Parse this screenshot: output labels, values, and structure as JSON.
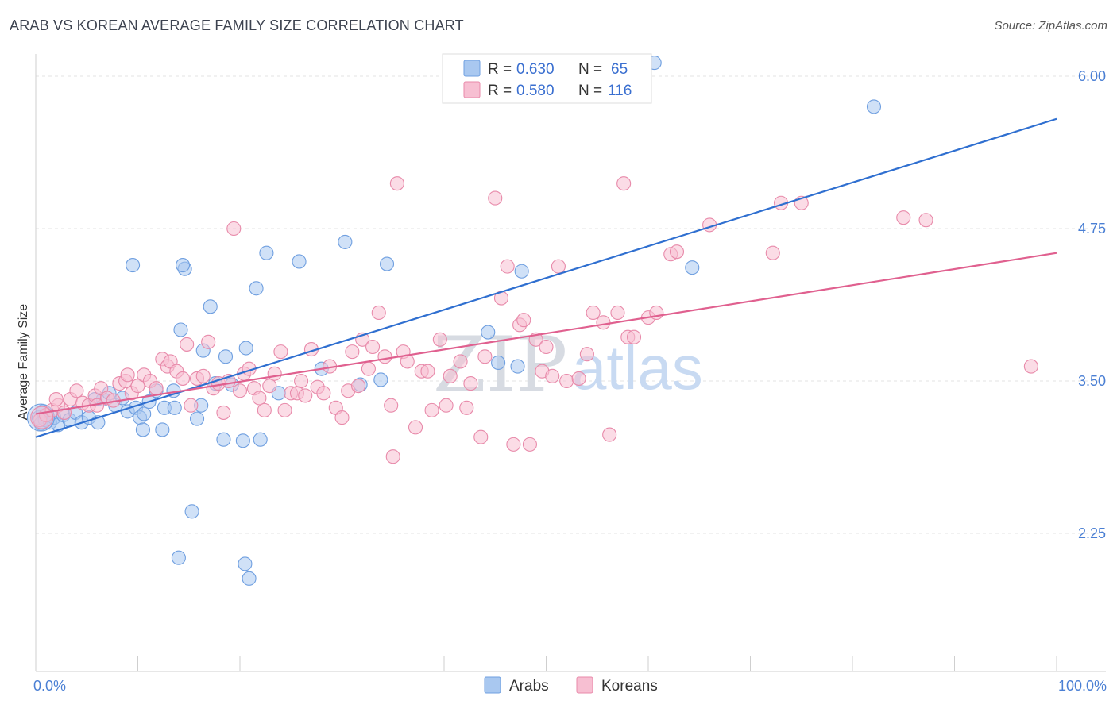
{
  "header": {
    "title": "ARAB VS KOREAN AVERAGE FAMILY SIZE CORRELATION CHART",
    "source": "Source: ZipAtlas.com"
  },
  "watermark": {
    "zip": "ZIP",
    "atlas": "atlas"
  },
  "legend": {
    "rows": [
      {
        "r_label": "R = ",
        "r_value": "0.630",
        "n_label": "N = ",
        "n_value": "65",
        "color": "#a9c8f0",
        "stroke": "#6f9fe0"
      },
      {
        "r_label": "R = ",
        "r_value": "0.580",
        "n_label": "N = ",
        "n_value": "116",
        "color": "#f7bfd2",
        "stroke": "#e88aaa"
      }
    ]
  },
  "bottom_legend": {
    "items": [
      "Arabs",
      "Koreans"
    ]
  },
  "chart_data": {
    "type": "scatter",
    "title": "ARAB VS KOREAN AVERAGE FAMILY SIZE CORRELATION CHART",
    "xlabel": "",
    "ylabel": "Average Family Size",
    "xlim": [
      0,
      100
    ],
    "ylim": [
      1.3,
      6.25
    ],
    "x_tick_labels": [
      "0.0%",
      "100.0%"
    ],
    "y_ticks": [
      2.25,
      3.5,
      4.75,
      6.0
    ],
    "y_tick_labels": [
      "2.25",
      "3.50",
      "4.75",
      "6.00"
    ],
    "grid": true,
    "legend_position": "top-center",
    "series": [
      {
        "name": "Arabs",
        "color": "#6f9fe0",
        "fill": "#a9c8f0",
        "trend": {
          "x": [
            0,
            100
          ],
          "y": [
            3.04,
            5.65
          ],
          "color": "#2f6fd0"
        },
        "points": [
          [
            0.3,
            3.2
          ],
          [
            0.5,
            3.15
          ],
          [
            0.7,
            3.25
          ],
          [
            0.9,
            3.18
          ],
          [
            1.1,
            3.22
          ],
          [
            1.4,
            3.16
          ],
          [
            1.8,
            3.2
          ],
          [
            2.2,
            3.14
          ],
          [
            2.7,
            3.22
          ],
          [
            3.3,
            3.18
          ],
          [
            3.9,
            3.24
          ],
          [
            4.5,
            3.16
          ],
          [
            5.2,
            3.2
          ],
          [
            6.1,
            3.16
          ],
          [
            6.6,
            3.35
          ],
          [
            7.2,
            3.4
          ],
          [
            7.8,
            3.3
          ],
          [
            8.5,
            3.36
          ],
          [
            9.0,
            3.25
          ],
          [
            9.8,
            3.28
          ],
          [
            10.2,
            3.2
          ],
          [
            10.6,
            3.23
          ],
          [
            11.1,
            3.33
          ],
          [
            11.8,
            3.42
          ],
          [
            12.4,
            3.1
          ],
          [
            12.6,
            3.28
          ],
          [
            13.5,
            3.42
          ],
          [
            13.6,
            3.28
          ],
          [
            14.2,
            3.92
          ],
          [
            14.6,
            4.42
          ],
          [
            15.3,
            2.43
          ],
          [
            15.8,
            3.19
          ],
          [
            16.2,
            3.3
          ],
          [
            16.4,
            3.75
          ],
          [
            17.1,
            4.11
          ],
          [
            17.6,
            3.48
          ],
          [
            18.4,
            3.02
          ],
          [
            18.6,
            3.7
          ],
          [
            19.2,
            3.47
          ],
          [
            20.3,
            3.01
          ],
          [
            20.6,
            3.77
          ],
          [
            20.9,
            1.88
          ],
          [
            21.6,
            4.26
          ],
          [
            22.6,
            4.55
          ],
          [
            23.8,
            3.4
          ],
          [
            25.8,
            4.48
          ],
          [
            28.0,
            3.6
          ],
          [
            30.3,
            4.64
          ],
          [
            31.8,
            3.47
          ],
          [
            33.8,
            3.51
          ],
          [
            34.4,
            4.46
          ],
          [
            44.3,
            3.9
          ],
          [
            45.3,
            3.65
          ],
          [
            47.2,
            3.62
          ],
          [
            47.6,
            4.4
          ],
          [
            60.6,
            6.11
          ],
          [
            64.3,
            4.43
          ],
          [
            82.1,
            5.75
          ],
          [
            9.5,
            4.45
          ],
          [
            14.4,
            4.45
          ],
          [
            14.0,
            2.05
          ],
          [
            20.5,
            2.0
          ],
          [
            22.0,
            3.02
          ],
          [
            5.8,
            3.35
          ],
          [
            10.5,
            3.1
          ]
        ]
      },
      {
        "name": "Koreans",
        "color": "#e88aaa",
        "fill": "#f7bfd2",
        "trend": {
          "x": [
            0,
            100
          ],
          "y": [
            3.23,
            4.55
          ],
          "color": "#e0608f"
        },
        "points": [
          [
            0.4,
            3.18
          ],
          [
            1.0,
            3.22
          ],
          [
            1.6,
            3.26
          ],
          [
            2.2,
            3.3
          ],
          [
            2.8,
            3.24
          ],
          [
            3.4,
            3.35
          ],
          [
            4.0,
            3.42
          ],
          [
            4.6,
            3.32
          ],
          [
            5.2,
            3.3
          ],
          [
            5.8,
            3.38
          ],
          [
            6.4,
            3.44
          ],
          [
            7.0,
            3.36
          ],
          [
            7.6,
            3.34
          ],
          [
            8.2,
            3.48
          ],
          [
            8.8,
            3.5
          ],
          [
            9.4,
            3.4
          ],
          [
            10.0,
            3.46
          ],
          [
            10.6,
            3.55
          ],
          [
            11.2,
            3.5
          ],
          [
            11.8,
            3.44
          ],
          [
            12.4,
            3.68
          ],
          [
            12.9,
            3.62
          ],
          [
            13.2,
            3.66
          ],
          [
            13.8,
            3.58
          ],
          [
            14.4,
            3.52
          ],
          [
            14.8,
            3.8
          ],
          [
            15.2,
            3.3
          ],
          [
            15.8,
            3.52
          ],
          [
            16.4,
            3.54
          ],
          [
            16.9,
            3.82
          ],
          [
            17.4,
            3.44
          ],
          [
            17.9,
            3.48
          ],
          [
            18.4,
            3.24
          ],
          [
            18.9,
            3.5
          ],
          [
            19.4,
            4.75
          ],
          [
            20.0,
            3.42
          ],
          [
            20.4,
            3.56
          ],
          [
            20.9,
            3.6
          ],
          [
            21.4,
            3.44
          ],
          [
            21.9,
            3.36
          ],
          [
            22.4,
            3.26
          ],
          [
            22.9,
            3.46
          ],
          [
            23.4,
            3.56
          ],
          [
            24.0,
            3.74
          ],
          [
            24.4,
            3.26
          ],
          [
            25.0,
            3.4
          ],
          [
            25.6,
            3.4
          ],
          [
            26.0,
            3.5
          ],
          [
            26.4,
            3.38
          ],
          [
            27.0,
            3.76
          ],
          [
            27.6,
            3.45
          ],
          [
            28.2,
            3.4
          ],
          [
            28.8,
            3.62
          ],
          [
            29.4,
            3.28
          ],
          [
            30.0,
            3.2
          ],
          [
            30.6,
            3.42
          ],
          [
            31.0,
            3.74
          ],
          [
            31.6,
            3.46
          ],
          [
            32.0,
            3.84
          ],
          [
            32.6,
            3.6
          ],
          [
            33.0,
            3.78
          ],
          [
            33.6,
            4.06
          ],
          [
            34.2,
            3.7
          ],
          [
            34.8,
            3.3
          ],
          [
            35.0,
            2.88
          ],
          [
            35.4,
            5.12
          ],
          [
            36.0,
            3.74
          ],
          [
            36.4,
            3.66
          ],
          [
            37.2,
            3.12
          ],
          [
            37.8,
            3.58
          ],
          [
            38.4,
            3.58
          ],
          [
            38.8,
            3.26
          ],
          [
            39.6,
            3.84
          ],
          [
            40.2,
            3.3
          ],
          [
            40.6,
            3.54
          ],
          [
            41.6,
            3.66
          ],
          [
            42.2,
            3.28
          ],
          [
            42.6,
            3.48
          ],
          [
            43.6,
            3.04
          ],
          [
            44.0,
            3.7
          ],
          [
            45.0,
            5.0
          ],
          [
            45.6,
            4.18
          ],
          [
            46.2,
            4.44
          ],
          [
            46.8,
            2.98
          ],
          [
            47.4,
            3.96
          ],
          [
            47.8,
            4.0
          ],
          [
            48.4,
            2.98
          ],
          [
            49.0,
            3.84
          ],
          [
            49.6,
            3.58
          ],
          [
            50.0,
            3.78
          ],
          [
            50.6,
            3.54
          ],
          [
            51.2,
            4.44
          ],
          [
            52.0,
            3.5
          ],
          [
            53.2,
            3.52
          ],
          [
            54.0,
            3.72
          ],
          [
            54.6,
            4.06
          ],
          [
            55.6,
            3.98
          ],
          [
            56.2,
            3.06
          ],
          [
            57.0,
            4.06
          ],
          [
            57.6,
            5.12
          ],
          [
            58.0,
            3.86
          ],
          [
            58.6,
            3.86
          ],
          [
            60.0,
            4.02
          ],
          [
            60.8,
            4.06
          ],
          [
            62.2,
            4.54
          ],
          [
            62.8,
            4.56
          ],
          [
            66.0,
            4.78
          ],
          [
            72.2,
            4.55
          ],
          [
            73.0,
            4.96
          ],
          [
            75.0,
            4.96
          ],
          [
            85.0,
            4.84
          ],
          [
            87.2,
            4.82
          ],
          [
            97.5,
            3.62
          ],
          [
            2.0,
            3.35
          ],
          [
            6.0,
            3.3
          ],
          [
            9.0,
            3.55
          ]
        ]
      }
    ]
  }
}
